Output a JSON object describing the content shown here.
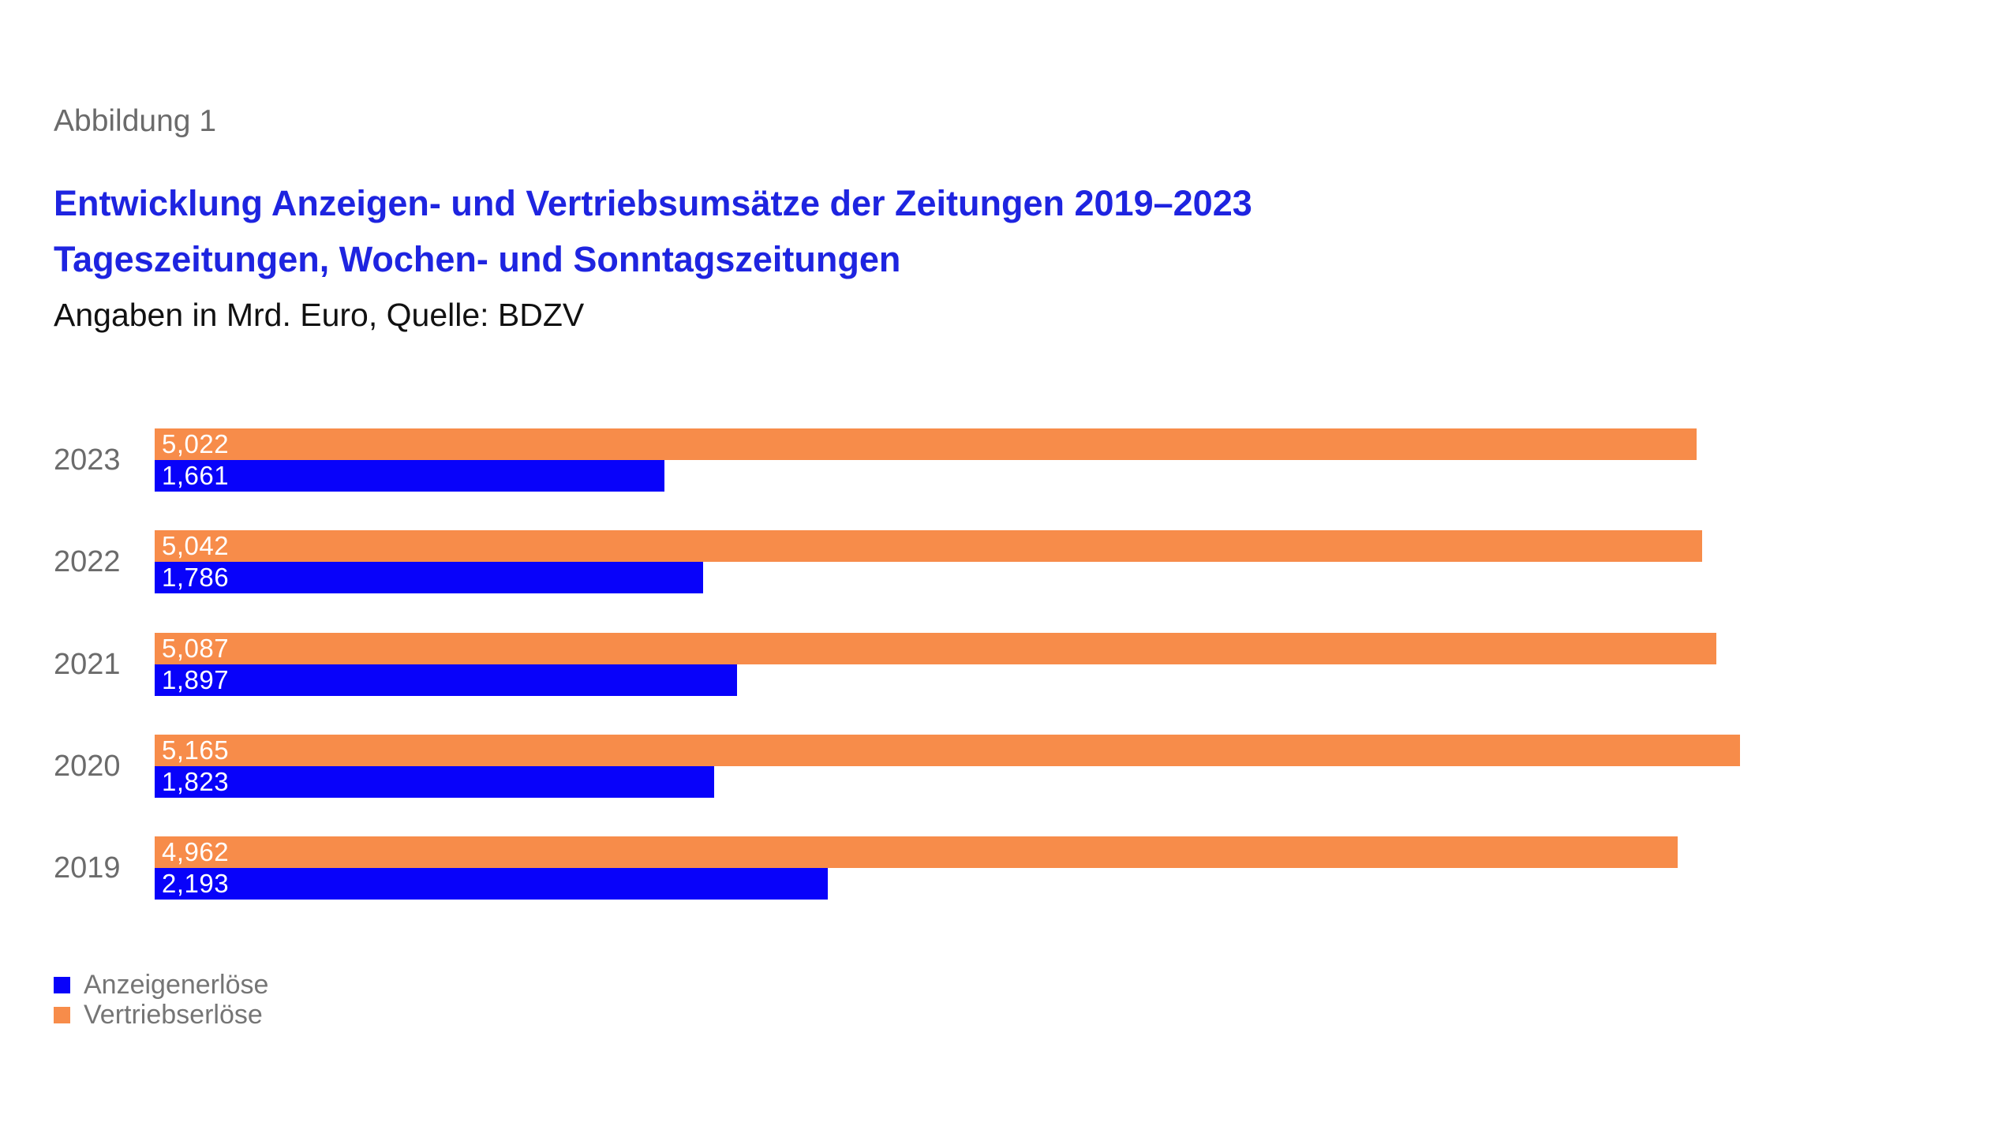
{
  "figure": {
    "label": "Abbildung 1"
  },
  "header": {
    "title_line1": "Entwicklung Anzeigen- und Vertriebsumsätze der Zeitungen 2019–2023",
    "title_line2": "Tageszeitungen, Wochen- und Sonntagszeitungen",
    "subtitle": "Angaben in Mrd. Euro, Quelle: BDZV"
  },
  "colors": {
    "title_blue": "#1e24e0",
    "bar_blue": "#0802fa",
    "bar_orange": "#f78c4a",
    "label_gray": "#6b6b6b",
    "legend_gray": "#757575",
    "subtitle_black": "#111111",
    "value_white": "#ffffff",
    "background": "#ffffff"
  },
  "chart_data": {
    "type": "bar",
    "orientation": "horizontal",
    "title": "Entwicklung Anzeigen- und Vertriebsumsätze der Zeitungen 2019–2023",
    "subtitle": "Tageszeitungen, Wochen- und Sonntagszeitungen",
    "note": "Angaben in Mrd. Euro, Quelle: BDZV",
    "unit": "Mrd. Euro",
    "categories": [
      "2023",
      "2022",
      "2021",
      "2020",
      "2019"
    ],
    "series": [
      {
        "name": "Vertriebserlöse",
        "color_key": "bar_orange",
        "values": [
          5.022,
          5.042,
          5.087,
          5.165,
          4.962
        ],
        "labels": [
          "5,022",
          "5,042",
          "5,087",
          "5,165",
          "4,962"
        ]
      },
      {
        "name": "Anzeigenerlöse",
        "color_key": "bar_blue",
        "values": [
          1.661,
          1.786,
          1.897,
          1.823,
          2.193
        ],
        "labels": [
          "1,661",
          "1,786",
          "1,897",
          "1,823",
          "2,193"
        ]
      }
    ],
    "legend": [
      {
        "label": "Anzeigenerlöse",
        "color_key": "bar_blue"
      },
      {
        "label": "Vertriebserlöse",
        "color_key": "bar_orange"
      }
    ],
    "axes": {
      "x_min": 0,
      "x_max_shown": 5.165,
      "gridlines": false,
      "axis_lines": false,
      "tick_labels": false
    },
    "legend_position": "bottom-left",
    "value_label_style": "inside-bar-left-white"
  }
}
